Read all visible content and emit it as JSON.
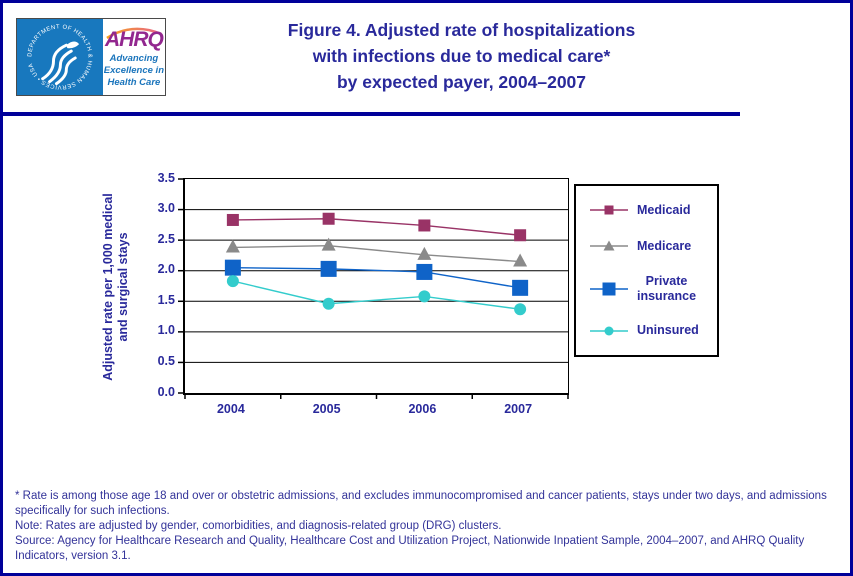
{
  "header": {
    "logo": {
      "seal_text": "DEPARTMENT OF HEALTH & HUMAN SERVICES • USA",
      "org": "AHRQ",
      "tagline_lines": [
        "Advancing",
        "Excellence in",
        "Health Care"
      ]
    },
    "title_lines": [
      "Figure 4. Adjusted rate of hospitalizations",
      "with infections due to medical care*",
      "by expected payer, 2004–2007"
    ]
  },
  "chart_data": {
    "type": "line",
    "title": "Adjusted rate of hospitalizations with infections due to medical care by expected payer, 2004-2007",
    "categories": [
      "2004",
      "2005",
      "2006",
      "2007"
    ],
    "series": [
      {
        "name": "Medicaid",
        "values": [
          2.83,
          2.85,
          2.74,
          2.58
        ],
        "color": "#993366",
        "marker": "square",
        "marker_size": 12
      },
      {
        "name": "Medicare",
        "values": [
          2.38,
          2.41,
          2.26,
          2.15
        ],
        "color": "#8A8A8A",
        "marker": "triangle",
        "marker_size": 14
      },
      {
        "name": "Private insurance",
        "legend_label": "Private\ninsurance",
        "values": [
          2.05,
          2.03,
          1.98,
          1.72
        ],
        "color": "#0F63C8",
        "marker": "square",
        "marker_size": 16
      },
      {
        "name": "Uninsured",
        "values": [
          1.83,
          1.46,
          1.58,
          1.37
        ],
        "color": "#33CCCC",
        "marker": "circle",
        "marker_size": 12
      }
    ],
    "ylabel_lines": [
      "Adjusted rate per 1,000 medical",
      "and surgical stays"
    ],
    "xlabel": "",
    "ylim": [
      0,
      3.5
    ],
    "y_ticks": [
      0.0,
      0.5,
      1.0,
      1.5,
      2.0,
      2.5,
      3.0,
      3.5
    ],
    "grid": true,
    "legend_position": "right"
  },
  "footnotes": [
    "* Rate is among those age 18 and over or obstetric admissions, and excludes immunocompromised and cancer patients, stays under two days, and admissions specifically for such infections.",
    "Note: Rates are adjusted by gender, comorbidities, and diagnosis-related group (DRG) clusters.",
    "Source: Agency for Healthcare Research and Quality, Healthcare Cost and Utilization Project, Nationwide Inpatient Sample, 2004–2007, and AHRQ Quality Indicators, version 3.1."
  ],
  "colors": {
    "border": "#000099",
    "title_text": "#29299B",
    "axis_text": "#29299B",
    "footnote_text": "#333399",
    "gridline": "#000000",
    "seal_blue": "#1878BE",
    "ahrq_purple": "#92278F",
    "tagline_blue": "#1B75BC"
  }
}
